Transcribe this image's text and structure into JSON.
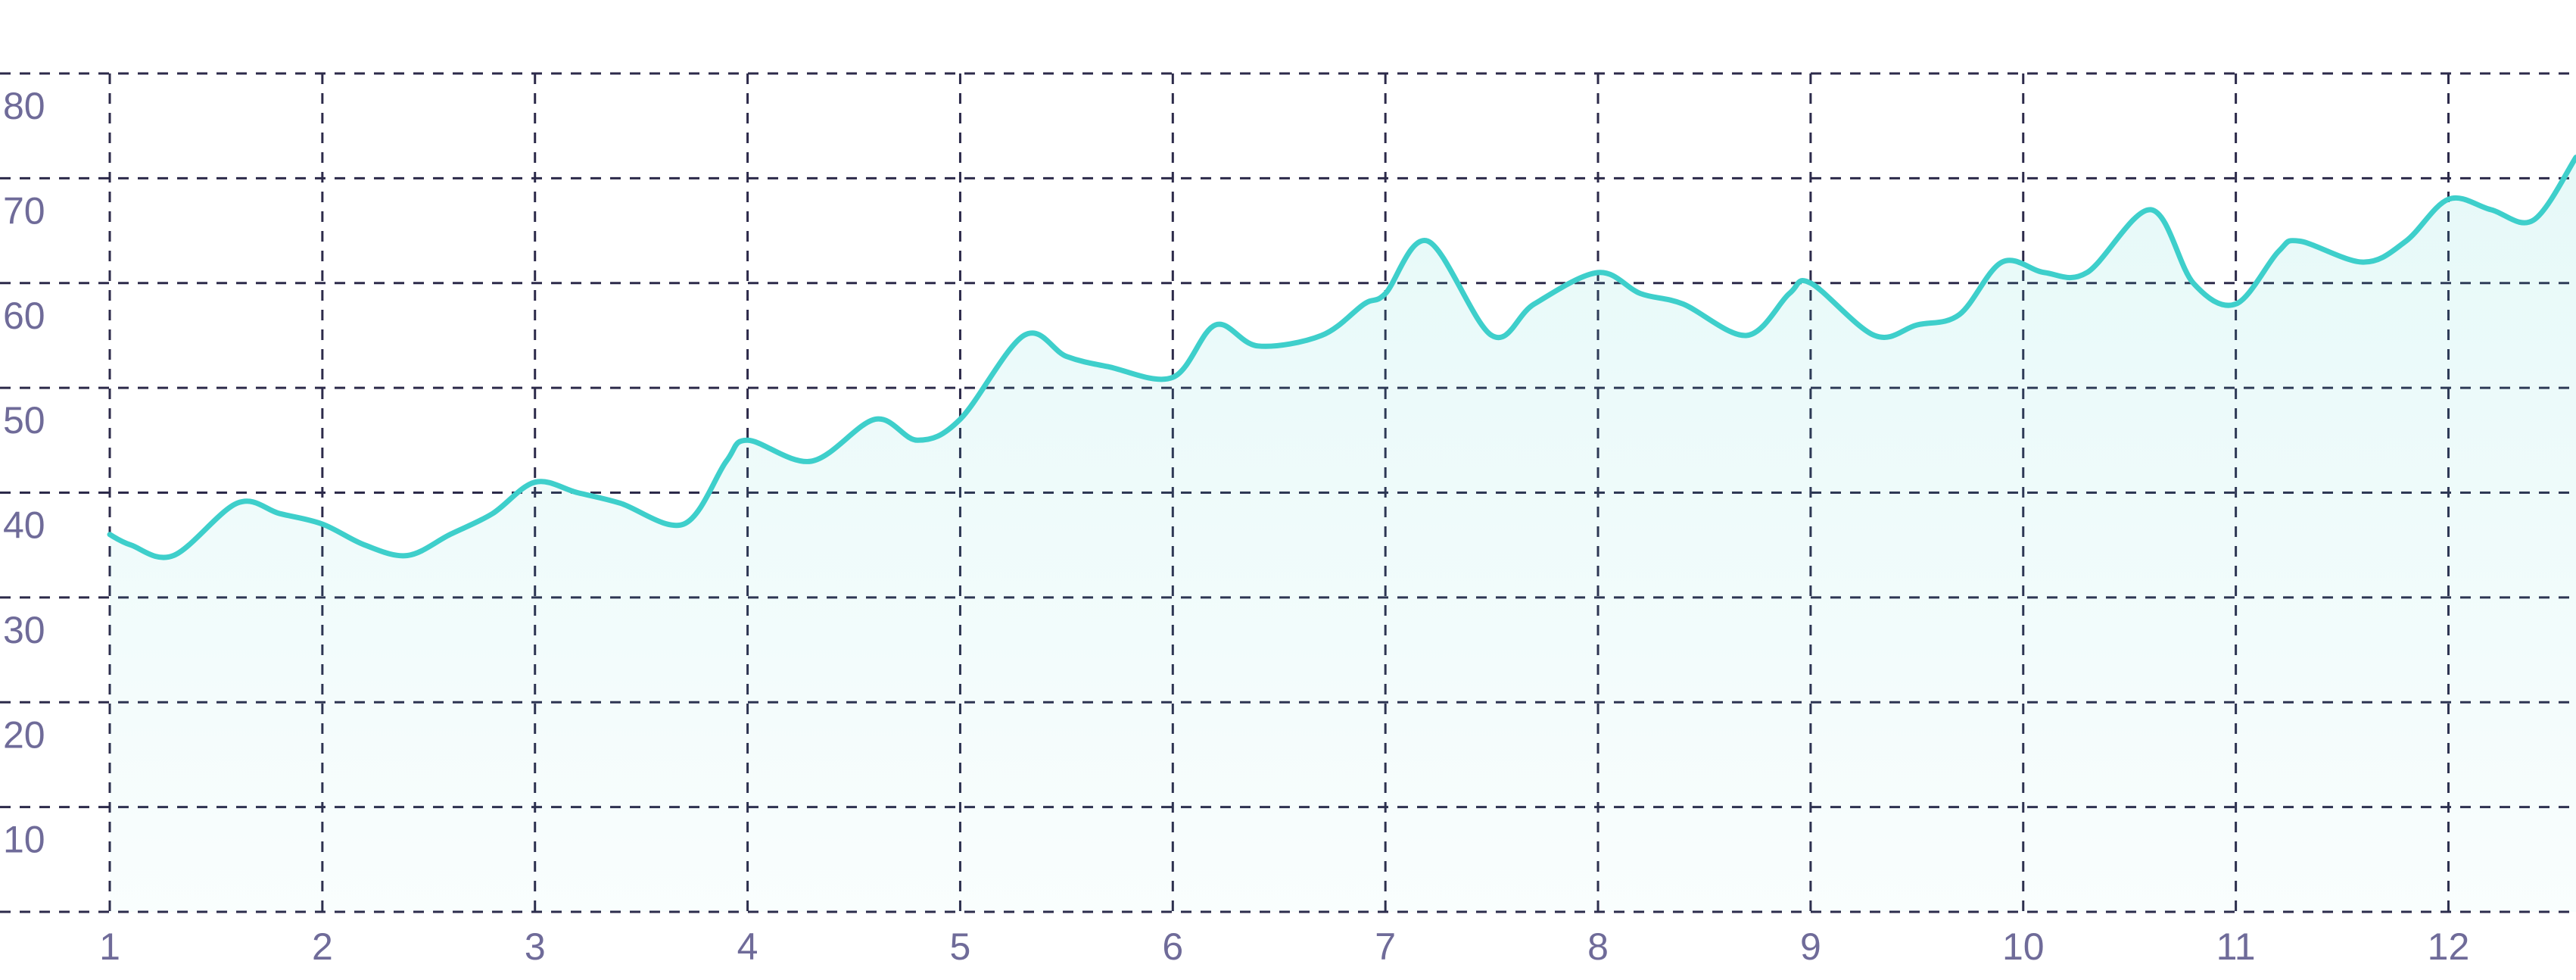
{
  "chart_data": {
    "type": "area",
    "title": "",
    "xlabel": "",
    "ylabel": "",
    "xlim": [
      1,
      12.6
    ],
    "ylim": [
      0,
      80
    ],
    "x_ticks": [
      1,
      2,
      3,
      4,
      5,
      6,
      7,
      8,
      9,
      10,
      11,
      12
    ],
    "x_tick_labels": [
      "1",
      "2",
      "3",
      "4",
      "5",
      "6",
      "7",
      "8",
      "9",
      "10",
      "11",
      "12"
    ],
    "y_ticks": [
      0,
      10,
      20,
      30,
      40,
      50,
      60,
      70,
      80
    ],
    "y_tick_labels": [
      "10",
      "20",
      "30",
      "40",
      "50",
      "60",
      "70",
      "80"
    ],
    "grid": true,
    "grid_style": "dashed",
    "legend": "none",
    "colors": {
      "line": "#3ecfcb",
      "fill": "#3ecfcb",
      "grid": "#2c2a4a",
      "tick_text": "#6f6b99"
    },
    "series": [
      {
        "x": [
          1.0,
          1.1,
          1.3,
          1.6,
          1.8,
          2.0,
          2.2,
          2.4,
          2.6,
          2.8,
          3.0,
          3.2,
          3.4,
          3.7,
          3.9,
          4.0,
          4.3,
          4.6,
          4.8,
          5.0,
          5.3,
          5.5,
          5.7,
          6.0,
          6.2,
          6.4,
          6.7,
          6.9,
          7.0,
          7.2,
          7.5,
          7.7,
          8.0,
          8.2,
          8.4,
          8.7,
          8.9,
          9.0,
          9.3,
          9.5,
          9.7,
          9.9,
          10.1,
          10.3,
          10.6,
          10.8,
          11.0,
          11.2,
          11.3,
          11.6,
          11.8,
          12.0,
          12.2,
          12.4,
          12.6
        ],
        "values": [
          36,
          35,
          34,
          39,
          38,
          37,
          35,
          34,
          36,
          38,
          41,
          40,
          39,
          37,
          43,
          45,
          43,
          47,
          45,
          47,
          55,
          53,
          52,
          51,
          56,
          54,
          55,
          58,
          59,
          64,
          55,
          58,
          61,
          59,
          58,
          55,
          59,
          60,
          55,
          56,
          57,
          62,
          61,
          61,
          67,
          60,
          58,
          63,
          64,
          62,
          64,
          68,
          67,
          66,
          72
        ]
      }
    ]
  }
}
